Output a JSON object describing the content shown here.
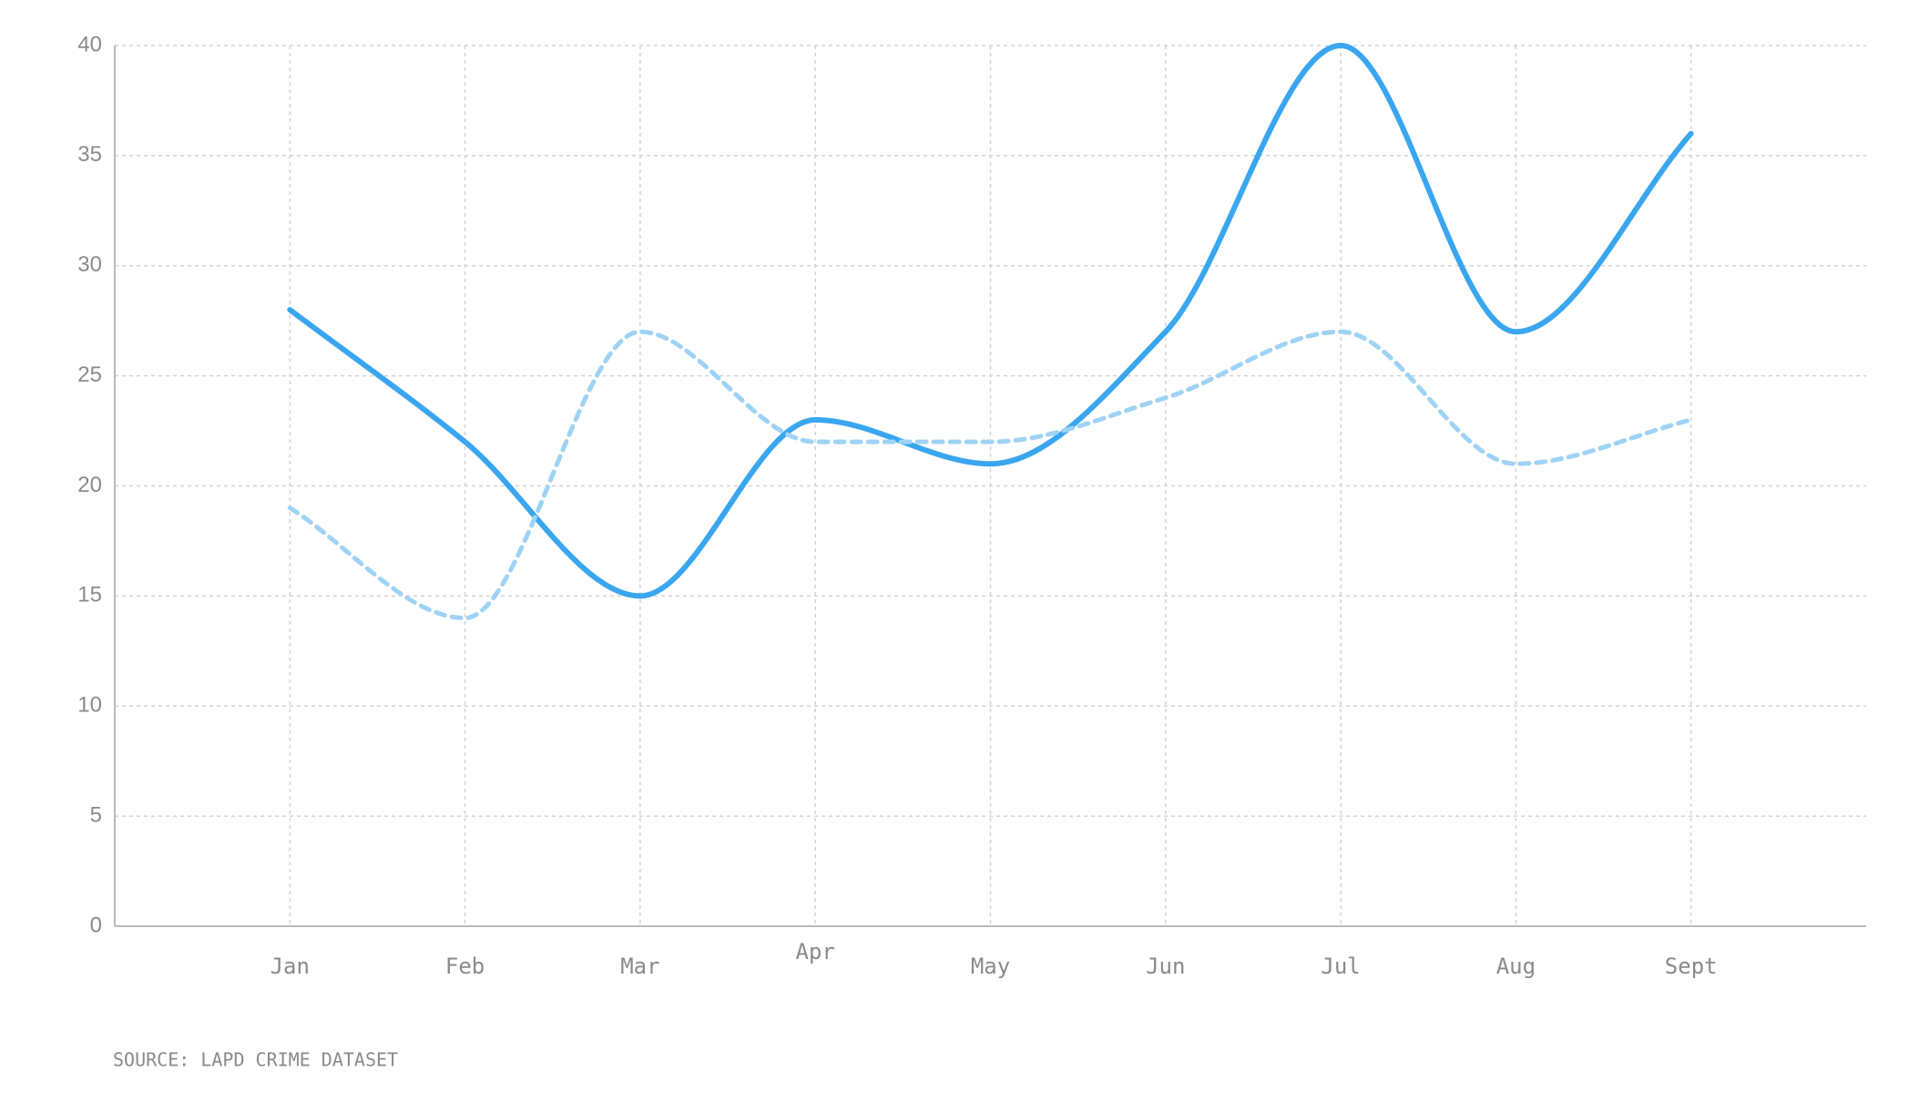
{
  "chart_data": {
    "type": "line",
    "categories": [
      "Jan",
      "Feb",
      "Mar",
      "Apr",
      "May",
      "Jun",
      "Jul",
      "Aug",
      "Sept"
    ],
    "series": [
      {
        "color": "#3aa6f0",
        "dash": false,
        "values": [
          28,
          22,
          15,
          23,
          21,
          27,
          40,
          27,
          36
        ]
      },
      {
        "color": "#9fd3f5",
        "dash": true,
        "values": [
          19,
          14,
          27,
          22,
          22,
          24,
          27,
          21,
          23
        ]
      }
    ],
    "ylim": [
      0,
      40
    ],
    "yticks": [
      0,
      5,
      10,
      15,
      20,
      25,
      30,
      35,
      40
    ],
    "grid": true,
    "source": "SOURCE: LAPD CRIME DATASET"
  }
}
